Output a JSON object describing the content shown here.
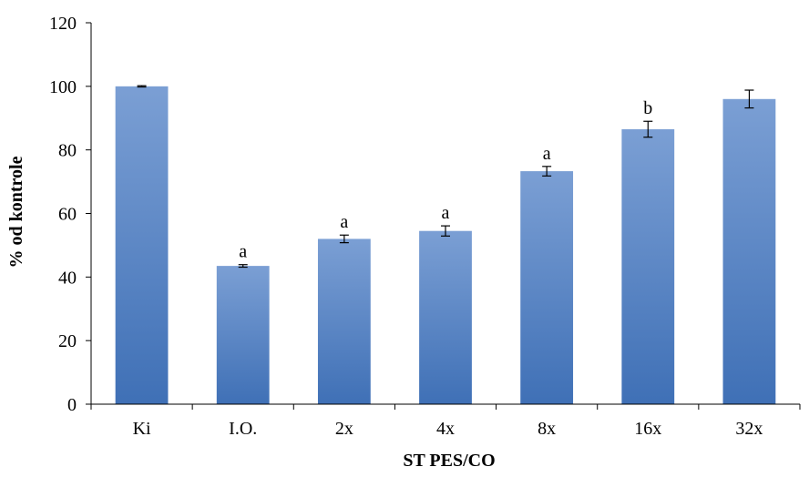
{
  "chart_data": {
    "type": "bar",
    "title": "",
    "xlabel": "ST  PES/CO",
    "ylabel": "% od kontrole",
    "ylim": [
      0,
      120
    ],
    "yticks": [
      0,
      20,
      40,
      60,
      80,
      100,
      120
    ],
    "grid": false,
    "legend": "none",
    "bar_color_top": "#7b9fd4",
    "bar_color_bottom": "#3f70b6",
    "categories": [
      "Ki",
      "I.O.",
      "2x",
      "4x",
      "8x",
      "16x",
      "32x"
    ],
    "values": [
      100,
      43.5,
      52,
      54.5,
      73.3,
      86.5,
      96
    ],
    "errors": [
      0.2,
      0.4,
      1.2,
      1.6,
      1.5,
      2.5,
      2.8
    ],
    "annotations": [
      "",
      "a",
      "a",
      "a",
      "a",
      "b",
      ""
    ]
  }
}
